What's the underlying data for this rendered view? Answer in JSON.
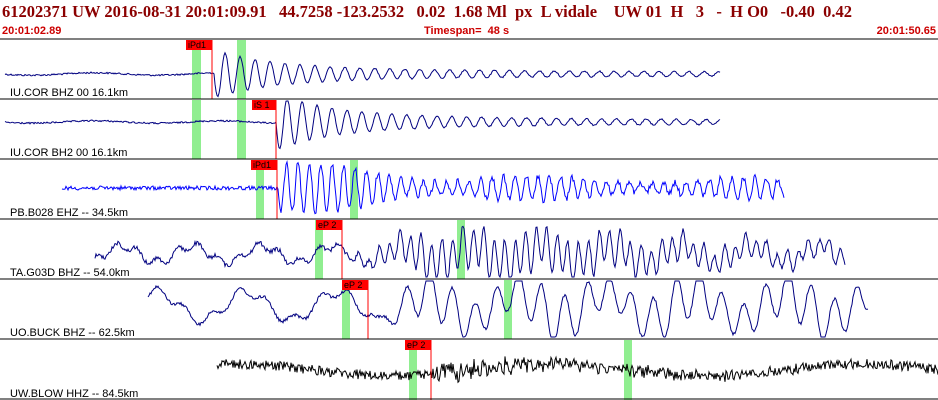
{
  "header": {
    "title": "61202371 UW 2016-08-31 20:01:09.91   44.7258 -123.2532   0.02  1.68 Ml  px  L vidale    UW 01  H   3   -  H O0   -0.40  0.42",
    "start_time": "20:01:02.89",
    "timespan": "Timespan=  48 s",
    "end_time": "20:01:50.65"
  },
  "colors": {
    "accent": "#8b0000",
    "pick_red": "#ff0000",
    "window_green": "#90ee90",
    "trace_navy": "#000080",
    "trace_blue": "#0000ff",
    "trace_black": "#000000"
  },
  "channels": [
    {
      "label": "IU.COR BHZ 00 16.1km",
      "color": "#000080",
      "amp": 0.9,
      "picks": [
        {
          "label": "iPd1"
        }
      ],
      "windows": [
        {},
        {}
      ]
    },
    {
      "label": "IU.COR BH2 00 16.1km",
      "color": "#000080",
      "amp": 0.9,
      "picks": [
        {
          "label": "iS 1"
        }
      ],
      "windows": [
        {},
        {}
      ]
    },
    {
      "label": "PB.B028 EHZ -- 34.5km",
      "color": "#0000ff",
      "amp": 1.0,
      "picks": [
        {
          "label": "iPd1"
        }
      ],
      "windows": [
        {},
        {}
      ]
    },
    {
      "label": "TA.G03D BHZ -- 54.0km",
      "color": "#000080",
      "amp": 1.0,
      "picks": [
        {
          "label": "eP 2"
        }
      ],
      "windows": [
        {},
        {}
      ]
    },
    {
      "label": "UO.BUCK BHZ -- 62.5km",
      "color": "#000080",
      "amp": 1.0,
      "picks": [
        {
          "label": "eP 2"
        }
      ],
      "windows": [
        {},
        {}
      ]
    },
    {
      "label": "UW.BLOW HHZ -- 84.5km",
      "color": "#000000",
      "amp": 1.0,
      "picks": [
        {
          "label": "eP 2"
        }
      ],
      "windows": [
        {},
        {}
      ]
    }
  ]
}
